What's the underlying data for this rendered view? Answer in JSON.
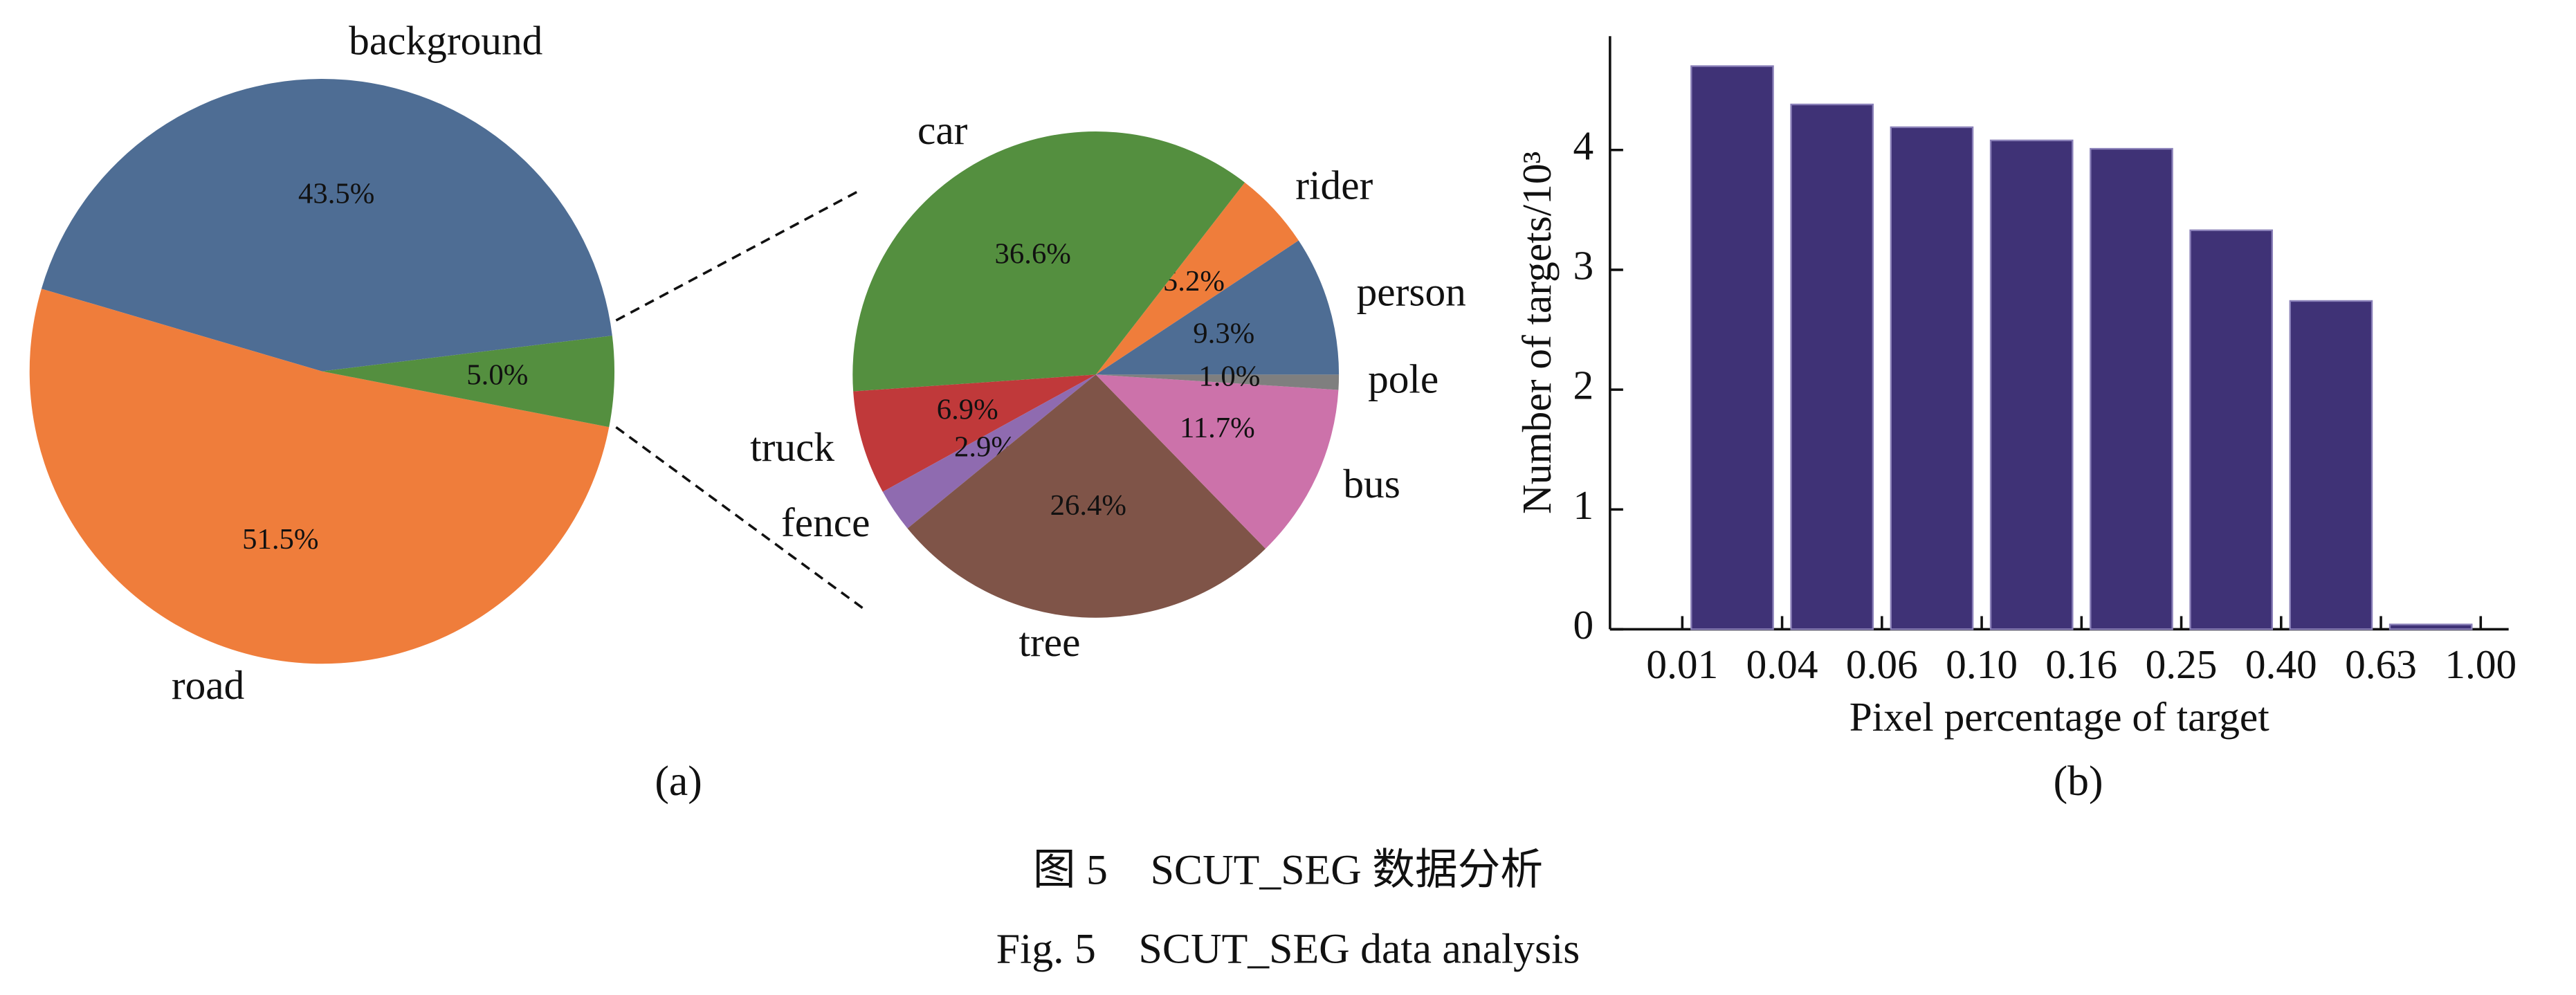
{
  "chart_data": [
    {
      "type": "pie",
      "labels": [
        "background",
        "road",
        null
      ],
      "values": [
        43.5,
        51.5,
        5.0
      ],
      "value_labels": [
        "43.5%",
        "51.5%",
        "5.0%"
      ],
      "colors": [
        "#4e6d94",
        "#ef7d3b",
        "#548f3f"
      ],
      "startangle": 7,
      "caption": "(a)"
    },
    {
      "type": "pie",
      "labels": [
        "person",
        "rider",
        "car",
        "truck",
        "fence",
        "tree",
        "bus",
        "pole"
      ],
      "values": [
        9.3,
        5.2,
        36.6,
        6.9,
        2.9,
        26.4,
        11.7,
        1.0
      ],
      "value_labels": [
        "9.3%",
        "5.2%",
        "36.6%",
        "6.9%",
        "2.9%",
        "26.4%",
        "11.7%",
        "1.0%"
      ],
      "colors": [
        "#4e6d94",
        "#ef7d3b",
        "#548f3f",
        "#c0393a",
        "#8f6bb0",
        "#7f5448",
        "#cc72aa",
        "#7f7f7f"
      ],
      "startangle": 0
    },
    {
      "type": "bar",
      "bin_labels": [
        "0.01",
        "0.04",
        "0.06",
        "0.10",
        "0.16",
        "0.25",
        "0.40",
        "0.63",
        "1.00"
      ],
      "values": [
        4.7,
        4.38,
        4.19,
        4.08,
        4.01,
        3.33,
        2.74,
        0.04
      ],
      "color": "#3f3276",
      "xlabel": "Pixel percentage of target",
      "ylabel": "Number of targets/10³",
      "ylim": [
        0,
        4.95
      ],
      "yticks": [
        0,
        1,
        2,
        3,
        4
      ],
      "caption": "(b)"
    }
  ],
  "figure": {
    "caption_cn": "图 5　SCUT_SEG 数据分析",
    "caption_en": "Fig. 5　SCUT_SEG data analysis"
  }
}
